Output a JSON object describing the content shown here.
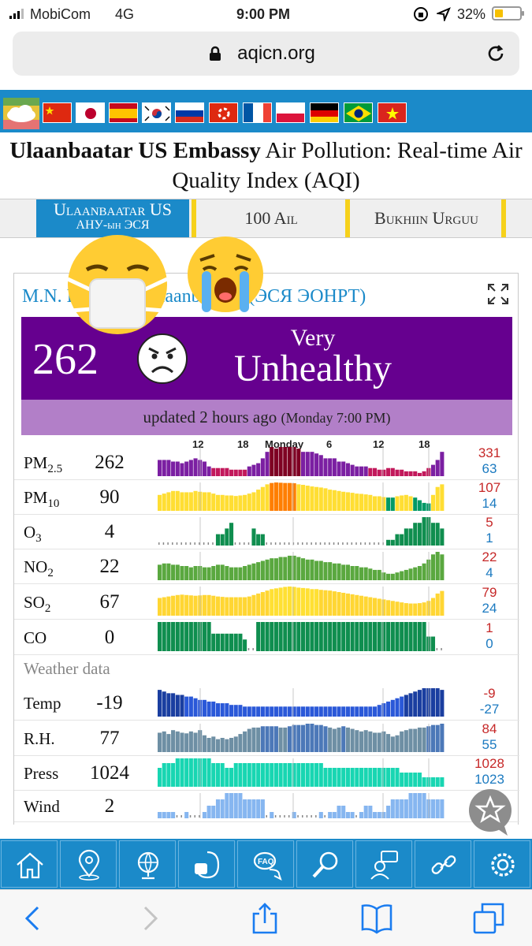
{
  "status": {
    "carrier": "MobiCom",
    "network": "4G",
    "time": "9:00 PM",
    "battery": "32%"
  },
  "browser": {
    "url": "aqicn.org"
  },
  "title": {
    "bold": "Ulaanbaatar US Embassy",
    "rest": " Air Pollution: Real-time Air Quality Index (AQI)"
  },
  "tabs": [
    {
      "line1": "Ulaanbaatar US",
      "line2": "АНУ-ын ЭСЯ"
    },
    {
      "label": "100 Ail"
    },
    {
      "label": "Bukhiin Urguu"
    }
  ],
  "station": {
    "name": "M.N. Embassy (Ulaanbaatar) (ЭСЯ ЭОНРТ)"
  },
  "aqi": {
    "value": "262",
    "level_line1": "Very",
    "level_line2": "Unhealthy",
    "color": "#66008f"
  },
  "updated": {
    "text": "updated 2 hours ago",
    "detail": "(Monday 7:00 PM)"
  },
  "chart_ticks": [
    "12",
    "18",
    "Monday",
    "6",
    "12",
    "18"
  ],
  "weather_heading": "Weather data",
  "pollutants": [
    {
      "name": "PM",
      "sub": "2.5",
      "current": "262",
      "max": "331",
      "min": "63",
      "values": [
        250,
        250,
        250,
        240,
        240,
        230,
        240,
        250,
        260,
        250,
        240,
        210,
        200,
        200,
        200,
        200,
        190,
        190,
        190,
        190,
        210,
        220,
        230,
        260,
        300,
        330,
        320,
        330,
        330,
        330,
        330,
        320,
        300,
        300,
        300,
        290,
        280,
        260,
        260,
        260,
        240,
        240,
        230,
        220,
        210,
        210,
        210,
        200,
        200,
        190,
        190,
        200,
        200,
        190,
        190,
        180,
        180,
        180,
        170,
        180,
        200,
        220,
        250,
        300
      ]
    },
    {
      "name": "PM",
      "sub": "10",
      "current": "90",
      "max": "107",
      "min": "14",
      "values": [
        60,
        65,
        70,
        75,
        75,
        70,
        70,
        70,
        75,
        72,
        70,
        70,
        65,
        60,
        60,
        58,
        58,
        56,
        58,
        60,
        65,
        70,
        80,
        90,
        100,
        105,
        107,
        106,
        105,
        105,
        104,
        100,
        98,
        95,
        92,
        90,
        88,
        85,
        80,
        78,
        75,
        72,
        70,
        68,
        65,
        64,
        62,
        60,
        55,
        55,
        52,
        50,
        50,
        55,
        58,
        60,
        55,
        50,
        40,
        30,
        28,
        60,
        90,
        100
      ]
    },
    {
      "name": "O",
      "sub": "3",
      "current": "4",
      "max": "5",
      "min": "1",
      "values": [
        0,
        0,
        0,
        0,
        0,
        0,
        0,
        0,
        0,
        0,
        0,
        0,
        0,
        2,
        2,
        3,
        4,
        0,
        0,
        0,
        0,
        3,
        2,
        2,
        0,
        0,
        0,
        0,
        0,
        0,
        0,
        0,
        0,
        0,
        0,
        0,
        0,
        0,
        0,
        0,
        0,
        0,
        0,
        0,
        0,
        0,
        0,
        0,
        0,
        0,
        0,
        1,
        1,
        2,
        2,
        3,
        3,
        4,
        4,
        5,
        5,
        4,
        4,
        3
      ]
    },
    {
      "name": "NO",
      "sub": "2",
      "current": "22",
      "max": "22",
      "min": "4",
      "values": [
        12,
        13,
        13,
        12,
        12,
        11,
        11,
        10,
        11,
        11,
        10,
        10,
        11,
        12,
        12,
        11,
        10,
        10,
        10,
        11,
        12,
        13,
        14,
        15,
        16,
        17,
        17,
        18,
        18,
        19,
        19,
        18,
        17,
        16,
        16,
        15,
        15,
        14,
        14,
        13,
        13,
        12,
        12,
        11,
        11,
        10,
        10,
        9,
        8,
        8,
        6,
        5,
        5,
        6,
        7,
        8,
        9,
        10,
        11,
        13,
        16,
        20,
        22,
        20
      ]
    },
    {
      "name": "SO",
      "sub": "2",
      "current": "67",
      "max": "79",
      "min": "24",
      "values": [
        48,
        50,
        52,
        54,
        56,
        57,
        56,
        55,
        54,
        55,
        56,
        56,
        54,
        52,
        51,
        50,
        50,
        50,
        50,
        50,
        52,
        56,
        60,
        64,
        68,
        72,
        74,
        76,
        78,
        79,
        78,
        76,
        75,
        74,
        72,
        72,
        70,
        69,
        68,
        66,
        64,
        62,
        60,
        58,
        56,
        54,
        52,
        50,
        48,
        46,
        44,
        42,
        40,
        38,
        36,
        34,
        33,
        33,
        34,
        36,
        40,
        48,
        60,
        67
      ]
    },
    {
      "name": "CO",
      "sub": "",
      "current": "0",
      "max": "1",
      "min": "0",
      "values": [
        1,
        1,
        1,
        1,
        1,
        1,
        1,
        1,
        1,
        1,
        1,
        1,
        0.6,
        0.6,
        0.6,
        0.6,
        0.6,
        0.6,
        0.6,
        0.4,
        0,
        0,
        1,
        1,
        1,
        1,
        1,
        1,
        1,
        1,
        1,
        1,
        1,
        1,
        1,
        1,
        1,
        1,
        1,
        1,
        1,
        1,
        1,
        1,
        1,
        1,
        1,
        1,
        1,
        1,
        1,
        1,
        1,
        1,
        1,
        1,
        1,
        1,
        1,
        1,
        0.5,
        0.5,
        0,
        0
      ]
    }
  ],
  "weather": [
    {
      "name": "Temp",
      "current": "-19",
      "max": "-9",
      "min": "-27",
      "values": [
        26,
        25,
        24,
        24,
        23,
        23,
        22,
        22,
        21,
        20,
        20,
        19,
        19,
        18,
        18,
        18,
        17,
        17,
        17,
        16,
        16,
        16,
        16,
        16,
        16,
        16,
        16,
        16,
        16,
        16,
        16,
        16,
        16,
        16,
        16,
        16,
        16,
        16,
        16,
        16,
        16,
        16,
        16,
        16,
        16,
        16,
        16,
        16,
        16,
        17,
        18,
        19,
        20,
        21,
        22,
        23,
        24,
        25,
        26,
        27,
        27,
        27,
        27,
        26
      ]
    },
    {
      "name": "R.H.",
      "current": "77",
      "max": "84",
      "min": "55",
      "values": [
        70,
        72,
        68,
        74,
        72,
        70,
        69,
        72,
        70,
        74,
        66,
        62,
        64,
        60,
        62,
        60,
        62,
        64,
        68,
        72,
        76,
        78,
        78,
        80,
        80,
        80,
        80,
        78,
        78,
        80,
        82,
        82,
        82,
        84,
        84,
        82,
        82,
        80,
        78,
        76,
        78,
        80,
        78,
        76,
        74,
        72,
        74,
        72,
        70,
        70,
        72,
        68,
        64,
        66,
        72,
        74,
        76,
        76,
        78,
        78,
        80,
        82,
        82,
        84
      ]
    },
    {
      "name": "Press",
      "current": "1024",
      "max": "1028",
      "min": "1023",
      "values": [
        1026,
        1027,
        1027,
        1027,
        1028,
        1028,
        1028,
        1028,
        1028,
        1028,
        1028,
        1028,
        1027,
        1027,
        1027,
        1026,
        1026,
        1027,
        1027,
        1027,
        1027,
        1027,
        1027,
        1027,
        1027,
        1027,
        1027,
        1027,
        1027,
        1027,
        1027,
        1027,
        1027,
        1027,
        1027,
        1027,
        1027,
        1026,
        1026,
        1026,
        1026,
        1026,
        1026,
        1026,
        1026,
        1026,
        1026,
        1026,
        1026,
        1026,
        1026,
        1026,
        1026,
        1026,
        1025,
        1025,
        1025,
        1025,
        1025,
        1024,
        1024,
        1024,
        1024,
        1024
      ]
    },
    {
      "name": "Wind",
      "current": "2",
      "max": "",
      "min": "",
      "values": [
        1,
        1,
        1,
        1,
        0,
        0,
        1,
        0,
        0,
        0,
        1,
        2,
        2,
        3,
        3,
        4,
        4,
        4,
        4,
        3,
        3,
        3,
        3,
        3,
        0,
        1,
        0,
        0,
        0,
        0,
        1,
        0,
        0,
        0,
        0,
        0,
        1,
        0,
        1,
        1,
        2,
        2,
        1,
        1,
        0,
        1,
        2,
        2,
        1,
        1,
        1,
        2,
        3,
        3,
        3,
        3,
        4,
        4,
        4,
        4,
        3,
        3,
        3,
        3
      ]
    }
  ],
  "nav_icons": [
    "home-icon",
    "location-pin-icon",
    "globe-icon",
    "mask-face-icon",
    "faq-icon",
    "search-icon",
    "support-agent-icon",
    "link-icon",
    "settings-gear-icon"
  ]
}
